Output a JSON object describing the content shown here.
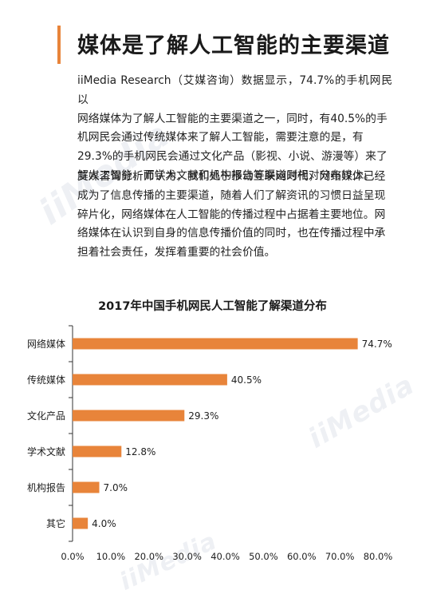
{
  "article": {
    "title": "媒体是了解人工智能的主要渠道",
    "paragraph1_lines": [
      "iiMedia Research（艾媒咨询）数据显示，74.7%的手机网民以",
      "网络媒体为了解人工智能的主要渠道之一，同时，有40.5%的手",
      "机网民会通过传统媒体来了解人工智能，需要注意的是，有",
      "29.3%的手机网民会通过文化产品（影视、小说、游漫等）来了",
      "解人工智能，而学术文献和机构报告等渠道则相对分布较少。"
    ],
    "paragraph2_lines": [
      "艾媒咨询分析师认为，我们处于移动互联网时代，网络媒体已经",
      "成为了信息传播的主要渠道，随着人们了解资讯的习惯日益呈现",
      "碎片化，网络媒体在人工智能的传播过程中占据着主要地位。网",
      "络媒体在认识到自身的信息传播价值的同时，也在传播过程中承",
      "担着社会责任，发挥着重要的社会价值。"
    ]
  },
  "watermark": {
    "text": "iiMedia",
    "color": "#eef0f4"
  },
  "colors": {
    "accent": "#e8843a",
    "bar": "#e8843a",
    "axis": "#333333",
    "text": "#1e1e1e"
  },
  "chart_data": {
    "type": "bar",
    "orientation": "horizontal",
    "title": "2017年中国手机网民人工智能了解渠道分布",
    "categories": [
      "网络媒体",
      "传统媒体",
      "文化产品",
      "学术文献",
      "机构报告",
      "其它"
    ],
    "values": [
      74.7,
      40.5,
      29.3,
      12.8,
      7.0,
      4.0
    ],
    "value_labels": [
      "74.7%",
      "40.5%",
      "29.3%",
      "12.8%",
      "7.0%",
      "4.0%"
    ],
    "xlim": [
      0,
      80
    ],
    "xticks": [
      0,
      10,
      20,
      30,
      40,
      50,
      60,
      70,
      80
    ],
    "xtick_labels": [
      "0.0%",
      "10.0%",
      "20.0%",
      "30.0%",
      "40.0%",
      "50.0%",
      "60.0%",
      "70.0%",
      "80.0%"
    ],
    "xlabel": "",
    "ylabel": "",
    "grid": false,
    "legend": "none"
  }
}
